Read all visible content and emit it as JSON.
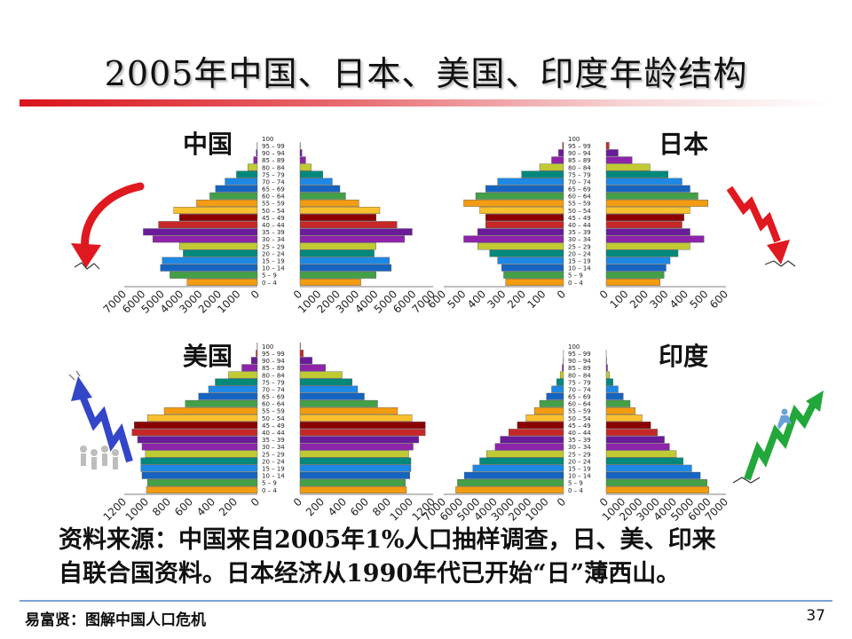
{
  "slide": {
    "title": "2005年中国、日本、美国、印度年龄结构",
    "source_line1": "资料来源：中国来自2005年1%人口抽样调查，日、美、印来",
    "source_line2": "自联合国资料。日本经济从1990年代已开始“日”薄西山。",
    "footer": "易富贤：图解中国人口危机",
    "page_number": "37"
  },
  "colors": {
    "title_rule": "#d9141c",
    "footer_rule": "#7da0d4",
    "bar_cycle": [
      "#f39c12",
      "#43a047",
      "#1565c0",
      "#1e88e5",
      "#00897b",
      "#c0ca33",
      "#8e24aa",
      "#6a1b9a",
      "#c62828",
      "#8b0000",
      "#fbc02d"
    ]
  },
  "icons": {
    "china": "red-curved-arrow-down-icon",
    "japan": "red-zigzag-arrow-down-icon",
    "usa": "blue-zigzag-arrow-up-people-icon",
    "india": "green-zigzag-arrow-up-runner-icon"
  },
  "chart_data": [
    {
      "type": "bar",
      "orientation": "horizontal-population-pyramid",
      "label": "中国",
      "age_groups": [
        "0 – 4",
        "5 – 9",
        "10 – 14",
        "15 – 19",
        "20 – 24",
        "25 – 29",
        "30 – 34",
        "35 – 39",
        "40 – 44",
        "45 – 49",
        "50 – 54",
        "55 – 59",
        "60 – 64",
        "65 – 69",
        "70 – 74",
        "75 – 79",
        "80 – 84",
        "85 – 89",
        "90 – 94",
        "95 – 99",
        "100"
      ],
      "left_values": [
        3700,
        4600,
        5100,
        5000,
        3900,
        4100,
        5500,
        6000,
        5200,
        4100,
        4400,
        3200,
        2500,
        2200,
        1700,
        1100,
        500,
        200,
        60,
        10,
        0
      ],
      "right_values": [
        3200,
        4000,
        4800,
        4700,
        3900,
        4000,
        5500,
        5900,
        5100,
        4000,
        4200,
        3100,
        2400,
        2100,
        1700,
        1200,
        600,
        300,
        100,
        20,
        0
      ],
      "left_ticks": [
        "7000",
        "6000",
        "5000",
        "4000",
        "3000",
        "2000",
        "1000",
        "0"
      ],
      "right_ticks": [
        "0",
        "1000",
        "2000",
        "3000",
        "4000",
        "5000",
        "6000",
        "7000"
      ],
      "xlim": [
        0,
        7000
      ]
    },
    {
      "type": "bar",
      "orientation": "horizontal-population-pyramid",
      "label": "日本",
      "age_groups": [
        "0 – 4",
        "5 – 9",
        "10 – 14",
        "15 – 19",
        "20 – 24",
        "25 – 29",
        "30 – 34",
        "35 – 39",
        "40 – 44",
        "45 – 49",
        "50 – 54",
        "55 – 59",
        "60 – 64",
        "65 – 69",
        "70 – 74",
        "75 – 79",
        "80 – 84",
        "85 – 89",
        "90 – 94",
        "95 – 99",
        "100"
      ],
      "left_values": [
        290,
        300,
        310,
        330,
        370,
        430,
        500,
        430,
        390,
        390,
        420,
        500,
        440,
        390,
        330,
        210,
        120,
        60,
        25,
        5,
        0
      ],
      "right_values": [
        270,
        290,
        300,
        320,
        360,
        420,
        490,
        420,
        380,
        390,
        420,
        510,
        460,
        420,
        380,
        310,
        220,
        130,
        60,
        15,
        0
      ],
      "left_ticks": [
        "600",
        "500",
        "400",
        "300",
        "200",
        "100",
        "0"
      ],
      "right_ticks": [
        "0",
        "100",
        "200",
        "300",
        "400",
        "500",
        "600"
      ],
      "xlim": [
        0,
        600
      ]
    },
    {
      "type": "bar",
      "orientation": "horizontal-population-pyramid",
      "label": "美国",
      "age_groups": [
        "0 – 4",
        "5 – 9",
        "10 – 14",
        "15 – 19",
        "20 – 24",
        "25 – 29",
        "30 – 34",
        "35 – 39",
        "40 – 44",
        "45 – 49",
        "50 – 54",
        "55 – 59",
        "60 – 64",
        "65 – 69",
        "70 – 74",
        "75 – 79",
        "80 – 84",
        "85 – 89",
        "90 – 94",
        "95 – 99",
        "100"
      ],
      "left_values": [
        1000,
        990,
        1040,
        1050,
        1050,
        1010,
        1040,
        1080,
        1130,
        1110,
        990,
        840,
        650,
        530,
        440,
        380,
        260,
        140,
        55,
        12,
        2
      ],
      "right_values": [
        960,
        950,
        990,
        1000,
        1000,
        980,
        1020,
        1070,
        1130,
        1130,
        1010,
        880,
        700,
        580,
        520,
        470,
        380,
        230,
        110,
        30,
        4
      ],
      "left_ticks": [
        "1200",
        "1000",
        "800",
        "600",
        "400",
        "200",
        "0"
      ],
      "right_ticks": [
        "0",
        "200",
        "400",
        "600",
        "800",
        "1000",
        "1200"
      ],
      "xlim": [
        0,
        1200
      ]
    },
    {
      "type": "bar",
      "orientation": "horizontal-population-pyramid",
      "label": "印度",
      "age_groups": [
        "0 – 4",
        "5 – 9",
        "10 – 14",
        "15 – 19",
        "20 – 24",
        "25 – 29",
        "30 – 34",
        "35 – 39",
        "40 – 44",
        "45 – 49",
        "50 – 54",
        "55 – 59",
        "60 – 64",
        "65 – 69",
        "70 – 74",
        "75 – 79",
        "80 – 84",
        "85 – 89",
        "90 – 94",
        "95 – 99",
        "100"
      ],
      "left_values": [
        6300,
        6200,
        5800,
        5300,
        4900,
        4500,
        4000,
        3700,
        3200,
        2700,
        2200,
        1700,
        1400,
        1000,
        700,
        400,
        200,
        80,
        20,
        5,
        0
      ],
      "right_values": [
        6000,
        5900,
        5500,
        5000,
        4500,
        4100,
        3700,
        3400,
        3000,
        2600,
        2100,
        1700,
        1400,
        1000,
        700,
        400,
        200,
        80,
        25,
        5,
        0
      ],
      "left_ticks": [
        "7000",
        "6000",
        "5000",
        "4000",
        "3000",
        "2000",
        "1000",
        "0"
      ],
      "right_ticks": [
        "0",
        "1000",
        "2000",
        "3000",
        "4000",
        "5000",
        "6000",
        "7000"
      ],
      "xlim": [
        0,
        7000
      ]
    }
  ]
}
